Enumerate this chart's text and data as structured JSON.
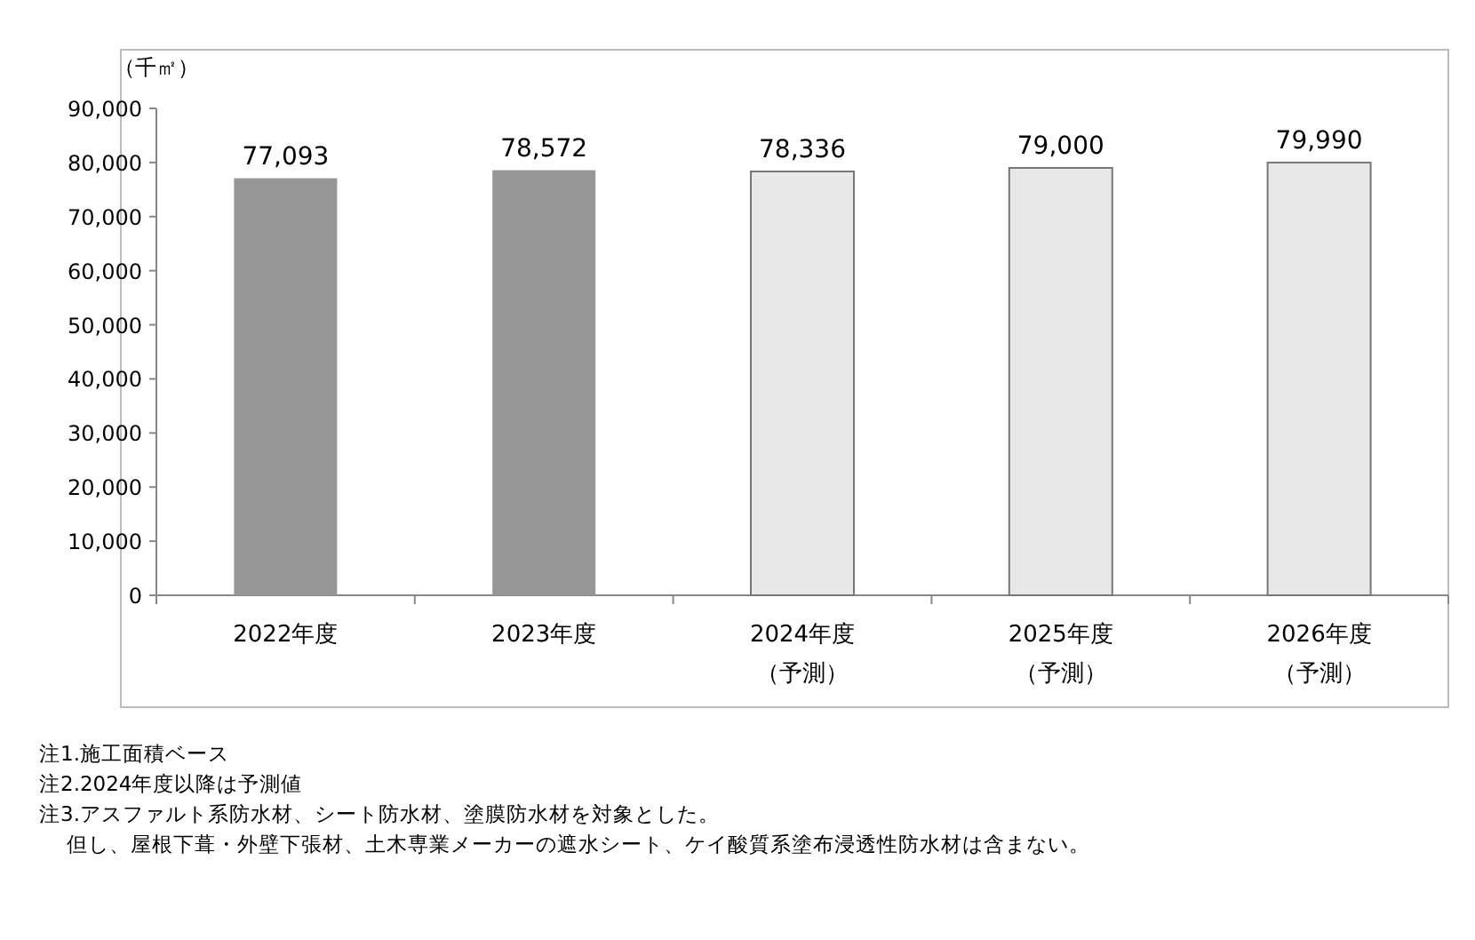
{
  "chart_data": {
    "type": "bar",
    "ylabel": "（千㎡）",
    "categories": [
      "2022年度",
      "2023年度",
      "2024年度（予測）",
      "2025年度（予測）",
      "2026年度（予測）"
    ],
    "values": [
      77093,
      78572,
      78336,
      79000,
      79990
    ],
    "colors": [
      "#969696",
      "#969696",
      "#e8e8e8",
      "#e8e8e8",
      "#e8e8e8"
    ],
    "ylim": [
      0,
      90000
    ],
    "yticks": [
      {
        "value": 0,
        "label": "0"
      },
      {
        "value": 10000,
        "label": "10,000"
      },
      {
        "value": 20000,
        "label": "20,000"
      },
      {
        "value": 30000,
        "label": "30,000"
      },
      {
        "value": 40000,
        "label": "40,000"
      },
      {
        "value": 50000,
        "label": "50,000"
      },
      {
        "value": 60000,
        "label": "60,000"
      },
      {
        "value": 70000,
        "label": "70,000"
      },
      {
        "value": 80000,
        "label": "80,000"
      },
      {
        "value": 90000,
        "label": "90,000"
      }
    ],
    "value_labels": [
      "77,093",
      "78,572",
      "78,336",
      "79,000",
      "79,990"
    ],
    "annotations": [
      "注1.施工面積ベース",
      "注2.2024年度以降は予測値",
      "注3.アスファルト系防水材、シート防水材、塗膜防水材を対象とした。",
      "　 但し、屋根下葺・外壁下張材、土木専業メーカーの遮水シート、ケイ酸質系塗布浸透性防水材は含まない。"
    ]
  }
}
